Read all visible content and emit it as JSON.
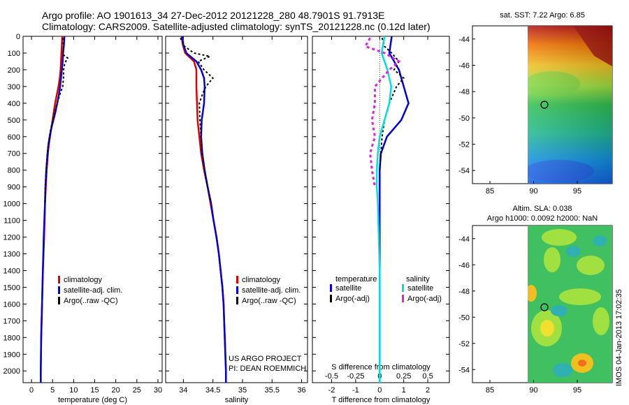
{
  "header": {
    "line1": "Argo profile: AO 1901613_34 27-Dec-2012 20121228_280 48.7901S 91.7913E",
    "line2": "Climatology: CARS2009. Satellite-adjusted climatology: synTS_20121228.nc (0.12d later)"
  },
  "footer": {
    "project": "US ARGO PROJECT",
    "pi": "PI: DEAN ROEMMICH",
    "timestamp": "IMOS 04-Jan-2013 17:02:35"
  },
  "colors": {
    "climatology": "#e00000",
    "satellite": "#0000e0",
    "argo": "#000000",
    "sal_satellite": "#00e0e0",
    "sal_argo": "#e020e0"
  },
  "chart_data": [
    {
      "type": "line",
      "title": "",
      "xlabel": "temperature (deg C)",
      "ylabel": "",
      "xlim": [
        -2,
        31
      ],
      "ylim": [
        2070,
        0
      ],
      "xticks": [
        0,
        5,
        10,
        15,
        20,
        25,
        30
      ],
      "yticks": [
        0,
        100,
        200,
        300,
        400,
        500,
        600,
        700,
        800,
        900,
        1000,
        1100,
        1200,
        1300,
        1400,
        1500,
        1600,
        1700,
        1800,
        1900,
        2000
      ],
      "legend": [
        "climatology",
        "satellite-adj. clim.",
        "Argo(..raw -QC)"
      ],
      "series": [
        {
          "name": "climatology",
          "depth": [
            0,
            50,
            100,
            150,
            200,
            250,
            300,
            350,
            400,
            450,
            500,
            550,
            600,
            650,
            700,
            800,
            900,
            1000,
            1200,
            1400,
            1600,
            1800,
            2000,
            2070
          ],
          "values": [
            7.3,
            7.2,
            7.1,
            7.0,
            6.9,
            6.7,
            6.4,
            6.0,
            5.6,
            5.3,
            5.0,
            4.7,
            4.4,
            4.1,
            3.9,
            3.6,
            3.4,
            3.2,
            3.0,
            2.7,
            2.5,
            2.3,
            2.2,
            2.2
          ]
        },
        {
          "name": "satellite-adj. clim.",
          "depth": [
            0,
            50,
            100,
            150,
            200,
            250,
            300,
            350,
            400,
            450,
            500,
            550,
            600,
            650,
            700,
            800,
            900,
            1000,
            1200,
            1400,
            1600,
            1800,
            2000,
            2070
          ],
          "values": [
            7.8,
            7.7,
            7.5,
            7.4,
            7.2,
            7.0,
            6.8,
            6.5,
            6.1,
            5.7,
            5.2,
            4.7,
            4.3,
            4.0,
            3.8,
            3.5,
            3.3,
            3.2,
            2.9,
            2.7,
            2.5,
            2.3,
            2.2,
            2.2
          ]
        },
        {
          "name": "Argo(..raw -QC)",
          "depth": [
            10,
            60,
            110,
            130,
            160,
            200,
            250,
            300,
            350,
            400,
            450,
            500,
            550,
            600,
            650,
            700,
            800,
            900,
            1000
          ],
          "values": [
            7.4,
            7.6,
            7.5,
            8.6,
            7.9,
            7.6,
            7.6,
            7.4,
            6.7,
            6.1,
            5.5,
            5.1,
            4.6,
            4.3,
            4.0,
            3.8,
            3.5,
            3.3,
            3.2
          ]
        }
      ]
    },
    {
      "type": "line",
      "title": "",
      "xlabel": "salinity",
      "ylabel": "",
      "xlim": [
        33.7,
        36.1
      ],
      "ylim": [
        2070,
        0
      ],
      "xticks": [
        34,
        34.5,
        35,
        35.5,
        36
      ],
      "legend": [
        "climatology",
        "satellite-adj. clim.",
        "Argo(..raw -QC)"
      ],
      "series": [
        {
          "name": "climatology",
          "depth": [
            0,
            50,
            100,
            150,
            200,
            300,
            400,
            500,
            600,
            700,
            800,
            900,
            1000,
            1100,
            1200,
            1300,
            1400,
            1500,
            1600,
            1800,
            2000,
            2070
          ],
          "values": [
            33.97,
            33.99,
            34.03,
            34.18,
            34.22,
            34.22,
            34.23,
            34.24,
            34.27,
            34.3,
            34.35,
            34.41,
            34.46,
            34.51,
            34.56,
            34.6,
            34.63,
            34.66,
            34.68,
            34.7,
            34.72,
            34.72
          ]
        },
        {
          "name": "satellite-adj. clim.",
          "depth": [
            0,
            50,
            100,
            150,
            200,
            250,
            300,
            400,
            500,
            600,
            700,
            800,
            900,
            1000,
            1100,
            1200,
            1300,
            1400,
            1500,
            1600,
            1800,
            2000,
            2070
          ],
          "values": [
            33.98,
            34.0,
            34.05,
            34.22,
            34.3,
            34.35,
            34.36,
            34.35,
            34.31,
            34.3,
            34.32,
            34.36,
            34.41,
            34.47,
            34.51,
            34.56,
            34.6,
            34.63,
            34.66,
            34.68,
            34.7,
            34.72,
            34.72
          ]
        },
        {
          "name": "Argo(..raw -QC)",
          "depth": [
            10,
            60,
            100,
            120,
            150,
            200,
            250,
            300,
            350,
            400,
            500,
            600,
            700,
            800,
            900,
            1000
          ],
          "values": [
            33.95,
            34.02,
            34.18,
            34.45,
            34.25,
            34.35,
            34.5,
            34.38,
            34.32,
            34.27,
            34.28,
            34.3,
            34.32,
            34.36,
            34.41,
            34.47
          ]
        }
      ]
    },
    {
      "type": "line",
      "title": "",
      "xlabel": "T difference from climatology",
      "xlabel_top": "S difference from climatology",
      "ylabel": "",
      "xlim": [
        -2.8,
        2.9
      ],
      "ylim": [
        2070,
        0
      ],
      "xticks": [
        -2,
        -1,
        0,
        1,
        2
      ],
      "xticks_top": [
        -0.5,
        -0.25,
        0,
        0.25,
        0.5
      ],
      "legend_temperature_title": "temperature",
      "legend_salinity_title": "salinity",
      "legend": [
        "satellite",
        "Argo(-adj)",
        "satellite",
        "Argo(-adj)"
      ],
      "series": [
        {
          "name": "temperature satellite",
          "depth": [
            0,
            100,
            200,
            300,
            400,
            500,
            600,
            700,
            800,
            900,
            1000,
            1200,
            1400,
            1600,
            1800,
            2000,
            2070
          ],
          "values": [
            0.5,
            0.4,
            0.8,
            1.0,
            1.2,
            0.9,
            0.3,
            0.05,
            0,
            0,
            0,
            0,
            0,
            0,
            0,
            0,
            0
          ]
        },
        {
          "name": "temperature Argo(-adj)",
          "depth": [
            10,
            60,
            100,
            150,
            200,
            250,
            300,
            400,
            500,
            600,
            700,
            800
          ],
          "values": [
            0.1,
            0.2,
            0.5,
            0.8,
            0.6,
            1.0,
            0.7,
            0.4,
            0.2,
            0.1,
            0.05,
            0.0
          ]
        },
        {
          "name": "salinity satellite",
          "depth": [
            0,
            100,
            200,
            300,
            400,
            500,
            600,
            700,
            800,
            900,
            1000,
            1200,
            1400,
            1600,
            1800,
            2000,
            2070
          ],
          "values": [
            0.05,
            0.02,
            0.08,
            0.12,
            0.1,
            0.05,
            0.0,
            -0.02,
            -0.03,
            -0.03,
            -0.02,
            -0.01,
            0,
            0,
            0,
            0,
            0
          ]
        },
        {
          "name": "salinity Argo(-adj)",
          "depth": [
            10,
            60,
            100,
            150,
            200,
            300,
            400,
            500,
            600,
            700,
            800,
            900
          ],
          "values": [
            -0.1,
            -0.15,
            0.05,
            0.2,
            0.1,
            -0.05,
            -0.05,
            -0.08,
            -0.05,
            -0.1,
            -0.08,
            -0.05
          ]
        }
      ]
    },
    {
      "type": "heatmap",
      "title": "sat. SST: 7.22 Argo: 6.85",
      "xticks": [
        85,
        90,
        95
      ],
      "yticks": [
        -44,
        -46,
        -48,
        -50,
        -52,
        -54
      ],
      "xlim": [
        83,
        99
      ],
      "ylim": [
        -55,
        -43
      ],
      "marker": {
        "lon": 91.79,
        "lat": -48.79
      }
    },
    {
      "type": "heatmap",
      "title": "Altim. SLA: 0.038",
      "subtitle": "Argo h1000: 0.0092 h2000: NaN",
      "xticks": [
        85,
        90,
        95
      ],
      "yticks": [
        -44,
        -46,
        -48,
        -50,
        -52,
        -54
      ],
      "xlim": [
        83,
        99
      ],
      "ylim": [
        -55,
        -43
      ],
      "marker": {
        "lon": 91.79,
        "lat": -48.79
      }
    }
  ]
}
